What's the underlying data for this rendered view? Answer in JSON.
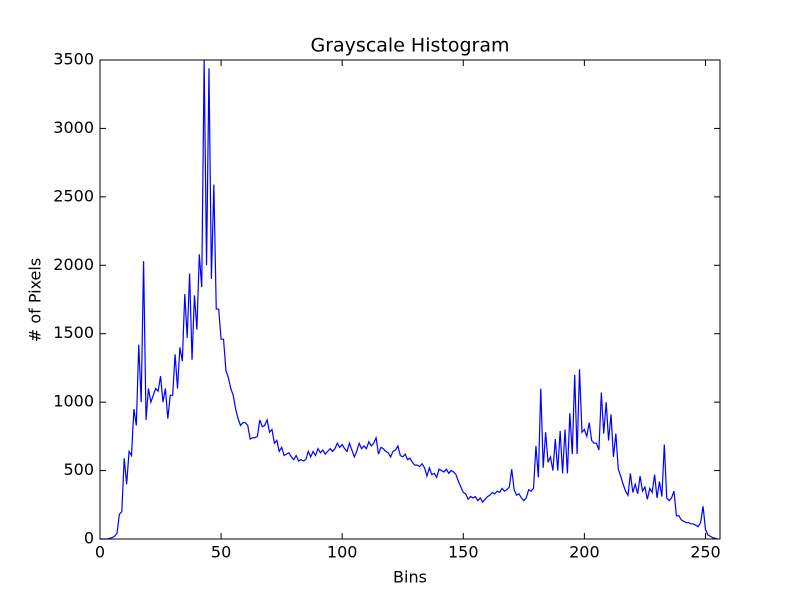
{
  "chart_data": {
    "type": "line",
    "title": "Grayscale Histogram",
    "xlabel": "Bins",
    "ylabel": "# of Pixels",
    "x": [
      0,
      1,
      2,
      3,
      4,
      5,
      6,
      7,
      8,
      9,
      10,
      11,
      12,
      13,
      14,
      15,
      16,
      17,
      18,
      19,
      20,
      21,
      22,
      23,
      24,
      25,
      26,
      27,
      28,
      29,
      30,
      31,
      32,
      33,
      34,
      35,
      36,
      37,
      38,
      39,
      40,
      41,
      42,
      43,
      44,
      45,
      46,
      47,
      48,
      49,
      50,
      51,
      52,
      53,
      54,
      55,
      56,
      57,
      58,
      59,
      60,
      61,
      62,
      63,
      64,
      65,
      66,
      67,
      68,
      69,
      70,
      71,
      72,
      73,
      74,
      75,
      76,
      77,
      78,
      79,
      80,
      81,
      82,
      83,
      84,
      85,
      86,
      87,
      88,
      89,
      90,
      91,
      92,
      93,
      94,
      95,
      96,
      97,
      98,
      99,
      100,
      101,
      102,
      103,
      104,
      105,
      106,
      107,
      108,
      109,
      110,
      111,
      112,
      113,
      114,
      115,
      116,
      117,
      118,
      119,
      120,
      121,
      122,
      123,
      124,
      125,
      126,
      127,
      128,
      129,
      130,
      131,
      132,
      133,
      134,
      135,
      136,
      137,
      138,
      139,
      140,
      141,
      142,
      143,
      144,
      145,
      146,
      147,
      148,
      149,
      150,
      151,
      152,
      153,
      154,
      155,
      156,
      157,
      158,
      159,
      160,
      161,
      162,
      163,
      164,
      165,
      166,
      167,
      168,
      169,
      170,
      171,
      172,
      173,
      174,
      175,
      176,
      177,
      178,
      179,
      180,
      181,
      182,
      183,
      184,
      185,
      186,
      187,
      188,
      189,
      190,
      191,
      192,
      193,
      194,
      195,
      196,
      197,
      198,
      199,
      200,
      201,
      202,
      203,
      204,
      205,
      206,
      207,
      208,
      209,
      210,
      211,
      212,
      213,
      214,
      215,
      216,
      217,
      218,
      219,
      220,
      221,
      222,
      223,
      224,
      225,
      226,
      227,
      228,
      229,
      230,
      231,
      232,
      233,
      234,
      235,
      236,
      237,
      238,
      239,
      240,
      241,
      242,
      243,
      244,
      245,
      246,
      247,
      248,
      249,
      250,
      251,
      252,
      253,
      254,
      255
    ],
    "values": [
      0,
      0,
      0,
      0,
      5,
      10,
      20,
      40,
      180,
      200,
      590,
      400,
      640,
      610,
      950,
      830,
      1420,
      1000,
      2030,
      870,
      1100,
      1000,
      1050,
      1100,
      1080,
      1190,
      1000,
      1100,
      880,
      1050,
      1050,
      1350,
      1100,
      1400,
      1300,
      1790,
      1470,
      1940,
      1310,
      1780,
      1530,
      2080,
      1840,
      3500,
      2000,
      3440,
      1900,
      2590,
      1680,
      1680,
      1460,
      1460,
      1230,
      1180,
      1100,
      1050,
      950,
      880,
      830,
      850,
      850,
      830,
      730,
      740,
      740,
      750,
      870,
      820,
      830,
      870,
      780,
      800,
      700,
      720,
      640,
      670,
      610,
      620,
      630,
      600,
      580,
      610,
      570,
      580,
      570,
      580,
      640,
      600,
      640,
      610,
      660,
      630,
      650,
      620,
      640,
      660,
      640,
      660,
      700,
      670,
      690,
      660,
      640,
      700,
      650,
      600,
      640,
      700,
      660,
      680,
      660,
      710,
      680,
      700,
      740,
      620,
      670,
      660,
      640,
      630,
      600,
      640,
      650,
      680,
      610,
      600,
      620,
      580,
      590,
      560,
      540,
      540,
      530,
      550,
      520,
      460,
      520,
      470,
      480,
      450,
      510,
      500,
      490,
      510,
      480,
      500,
      490,
      470,
      420,
      380,
      340,
      330,
      290,
      310,
      300,
      310,
      280,
      300,
      270,
      290,
      310,
      320,
      340,
      330,
      350,
      340,
      370,
      350,
      360,
      380,
      510,
      360,
      320,
      330,
      300,
      280,
      300,
      360,
      350,
      370,
      680,
      450,
      1100,
      520,
      780,
      560,
      600,
      500,
      730,
      500,
      790,
      480,
      800,
      480,
      920,
      620,
      1200,
      620,
      1240,
      780,
      800,
      750,
      850,
      720,
      700,
      700,
      650,
      1070,
      770,
      1000,
      720,
      910,
      600,
      770,
      510,
      460,
      400,
      350,
      320,
      480,
      340,
      400,
      330,
      460,
      350,
      380,
      290,
      370,
      340,
      470,
      300,
      420,
      310,
      690,
      300,
      280,
      300,
      350,
      170,
      170,
      140,
      130,
      120,
      120,
      110,
      110,
      100,
      90,
      120,
      240,
      70,
      30,
      20,
      10,
      5,
      0
    ],
    "color": "#0000ff",
    "xlim": [
      0,
      256
    ],
    "ylim": [
      0,
      3500
    ],
    "xticks": [
      0,
      50,
      100,
      150,
      200,
      250
    ],
    "yticks": [
      0,
      500,
      1000,
      1500,
      2000,
      2500,
      3000,
      3500
    ]
  }
}
